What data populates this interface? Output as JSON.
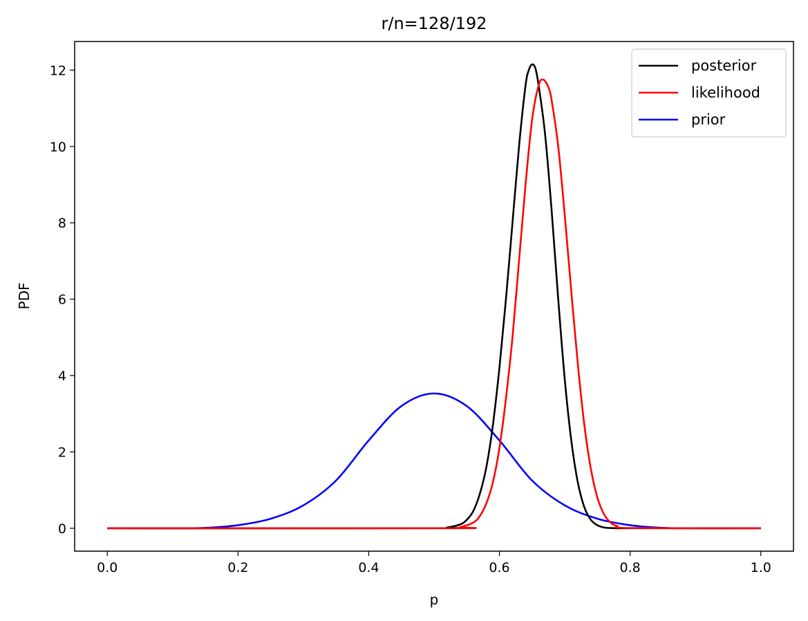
{
  "chart_data": {
    "type": "line",
    "title": "r/n=128/192",
    "xlabel": "p",
    "ylabel": "PDF",
    "xlim": [
      -0.05,
      1.05
    ],
    "ylim": [
      -0.6,
      12.75
    ],
    "xticks": [
      0.0,
      0.2,
      0.4,
      0.6,
      0.8,
      1.0
    ],
    "xtick_labels": [
      "0.0",
      "0.2",
      "0.4",
      "0.6",
      "0.8",
      "1.0"
    ],
    "yticks": [
      0,
      2,
      4,
      6,
      8,
      10,
      12
    ],
    "ytick_labels": [
      "0",
      "2",
      "4",
      "6",
      "8",
      "10",
      "12"
    ],
    "grid": false,
    "legend_position": "top-right",
    "series": [
      {
        "name": "posterior",
        "color": "#000000",
        "x": [
          0.0,
          0.5,
          0.52,
          0.54,
          0.55,
          0.56,
          0.57,
          0.58,
          0.59,
          0.6,
          0.61,
          0.62,
          0.63,
          0.64,
          0.645,
          0.65,
          0.655,
          0.66,
          0.67,
          0.68,
          0.69,
          0.7,
          0.71,
          0.72,
          0.73,
          0.74,
          0.75,
          0.76,
          0.77,
          0.78,
          0.8,
          1.0
        ],
        "y": [
          0,
          0.0,
          0.02,
          0.1,
          0.22,
          0.45,
          0.9,
          1.6,
          2.7,
          4.2,
          6.0,
          8.0,
          10.0,
          11.6,
          12.0,
          12.15,
          12.05,
          11.6,
          10.3,
          8.3,
          6.0,
          3.9,
          2.3,
          1.2,
          0.55,
          0.22,
          0.08,
          0.02,
          0.005,
          0.0,
          0.0,
          0.0
        ]
      },
      {
        "name": "likelihood",
        "color": "#ff0000",
        "x": [
          0.0,
          0.52,
          0.54,
          0.56,
          0.57,
          0.58,
          0.59,
          0.6,
          0.61,
          0.62,
          0.63,
          0.64,
          0.65,
          0.66,
          0.667,
          0.675,
          0.68,
          0.69,
          0.7,
          0.71,
          0.72,
          0.73,
          0.74,
          0.75,
          0.76,
          0.77,
          0.78,
          0.8,
          1.0
        ],
        "y": [
          0,
          0.0,
          0.03,
          0.15,
          0.32,
          0.65,
          1.2,
          2.1,
          3.4,
          5.0,
          7.0,
          9.0,
          10.7,
          11.6,
          11.75,
          11.55,
          11.2,
          10.0,
          8.2,
          6.2,
          4.3,
          2.7,
          1.55,
          0.8,
          0.37,
          0.15,
          0.06,
          0.005,
          0.0
        ]
      },
      {
        "name": "prior",
        "color": "#0000ff",
        "x": [
          0.0,
          0.1,
          0.15,
          0.2,
          0.25,
          0.3,
          0.35,
          0.4,
          0.45,
          0.5,
          0.55,
          0.6,
          0.65,
          0.7,
          0.75,
          0.8,
          0.85,
          0.9,
          1.0
        ],
        "y": [
          0.0,
          0.0,
          0.01,
          0.08,
          0.25,
          0.6,
          1.25,
          2.3,
          3.2,
          3.53,
          3.2,
          2.3,
          1.25,
          0.6,
          0.25,
          0.08,
          0.01,
          0.0,
          0.0
        ]
      }
    ]
  }
}
